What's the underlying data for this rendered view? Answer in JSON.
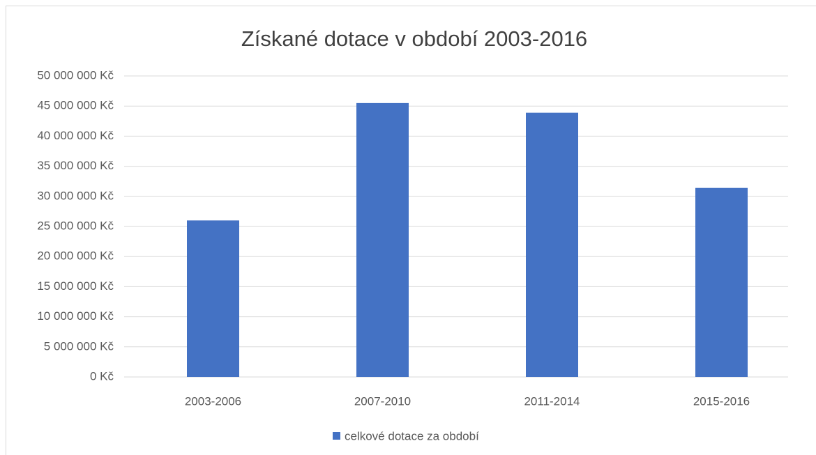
{
  "chart_data": {
    "type": "bar",
    "title": "Získané dotace v období 2003-2016",
    "categories": [
      "2003-2006",
      "2007-2010",
      "2011-2014",
      "2015-2016"
    ],
    "series": [
      {
        "name": "celkové dotace za období",
        "color": "#4472c4",
        "values": [
          26000000,
          45500000,
          43900000,
          31400000
        ]
      }
    ],
    "ylim": [
      0,
      50000000
    ],
    "yticks": [
      {
        "value": 0,
        "label": "0 Kč"
      },
      {
        "value": 5000000,
        "label": "5 000 000 Kč"
      },
      {
        "value": 10000000,
        "label": "10 000 000 Kč"
      },
      {
        "value": 15000000,
        "label": "15 000 000 Kč"
      },
      {
        "value": 20000000,
        "label": "20 000 000 Kč"
      },
      {
        "value": 25000000,
        "label": "25 000 000 Kč"
      },
      {
        "value": 30000000,
        "label": "30 000 000 Kč"
      },
      {
        "value": 35000000,
        "label": "35 000 000 Kč"
      },
      {
        "value": 40000000,
        "label": "40 000 000 Kč"
      },
      {
        "value": 45000000,
        "label": "45 000 000 Kč"
      },
      {
        "value": 50000000,
        "label": "50 000 000 Kč"
      }
    ],
    "grid": true,
    "legend": "bottom"
  }
}
